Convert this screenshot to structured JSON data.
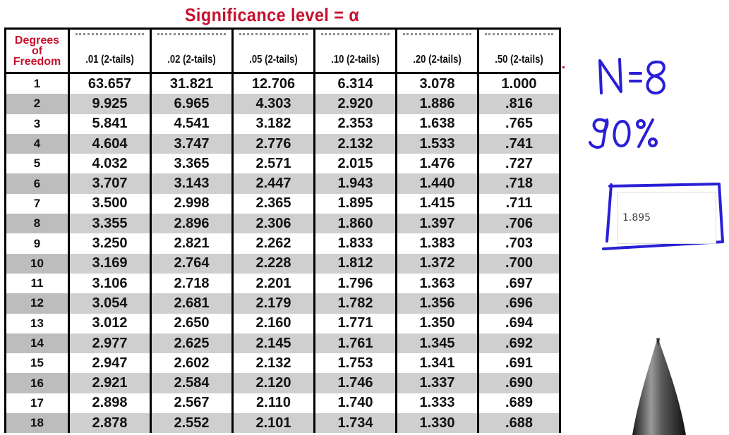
{
  "title": "Significance level = α",
  "header": {
    "dof_label": [
      "Degrees",
      "of",
      "Freedom"
    ],
    "columns": [
      ".01 (2-tails)",
      ".02 (2-tails)",
      ".05 (2-tails)",
      ".10 (2-tails)",
      ".20 (2-tails)",
      ".50 (2-tails)"
    ]
  },
  "rows": [
    {
      "df": "1",
      "values": [
        "63.657",
        "31.821",
        "12.706",
        "6.314",
        "3.078",
        "1.000"
      ]
    },
    {
      "df": "2",
      "values": [
        "9.925",
        "6.965",
        "4.303",
        "2.920",
        "1.886",
        ".816"
      ]
    },
    {
      "df": "3",
      "values": [
        "5.841",
        "4.541",
        "3.182",
        "2.353",
        "1.638",
        ".765"
      ]
    },
    {
      "df": "4",
      "values": [
        "4.604",
        "3.747",
        "2.776",
        "2.132",
        "1.533",
        ".741"
      ]
    },
    {
      "df": "5",
      "values": [
        "4.032",
        "3.365",
        "2.571",
        "2.015",
        "1.476",
        ".727"
      ]
    },
    {
      "df": "6",
      "values": [
        "3.707",
        "3.143",
        "2.447",
        "1.943",
        "1.440",
        ".718"
      ]
    },
    {
      "df": "7",
      "values": [
        "3.500",
        "2.998",
        "2.365",
        "1.895",
        "1.415",
        ".711"
      ]
    },
    {
      "df": "8",
      "values": [
        "3.355",
        "2.896",
        "2.306",
        "1.860",
        "1.397",
        ".706"
      ]
    },
    {
      "df": "9",
      "values": [
        "3.250",
        "2.821",
        "2.262",
        "1.833",
        "1.383",
        ".703"
      ]
    },
    {
      "df": "10",
      "values": [
        "3.169",
        "2.764",
        "2.228",
        "1.812",
        "1.372",
        ".700"
      ]
    },
    {
      "df": "11",
      "values": [
        "3.106",
        "2.718",
        "2.201",
        "1.796",
        "1.363",
        ".697"
      ]
    },
    {
      "df": "12",
      "values": [
        "3.054",
        "2.681",
        "2.179",
        "1.782",
        "1.356",
        ".696"
      ]
    },
    {
      "df": "13",
      "values": [
        "3.012",
        "2.650",
        "2.160",
        "1.771",
        "1.350",
        ".694"
      ]
    },
    {
      "df": "14",
      "values": [
        "2.977",
        "2.625",
        "2.145",
        "1.761",
        "1.345",
        ".692"
      ]
    },
    {
      "df": "15",
      "values": [
        "2.947",
        "2.602",
        "2.132",
        "1.753",
        "1.341",
        ".691"
      ]
    },
    {
      "df": "16",
      "values": [
        "2.921",
        "2.584",
        "2.120",
        "1.746",
        "1.337",
        ".690"
      ]
    },
    {
      "df": "17",
      "values": [
        "2.898",
        "2.567",
        "2.110",
        "1.740",
        "1.333",
        ".689"
      ]
    },
    {
      "df": "18",
      "values": [
        "2.878",
        "2.552",
        "2.101",
        "1.734",
        "1.330",
        ".688"
      ]
    }
  ],
  "handwriting": {
    "line1": "N=8",
    "line2": "90%"
  },
  "answer": {
    "value": "1.895"
  },
  "colors": {
    "title_red": "#c8102e",
    "ink_blue": "#2a1fd6",
    "row_shade": "#cfcfcf"
  },
  "icons": {
    "pen": "pen-tip-icon"
  }
}
